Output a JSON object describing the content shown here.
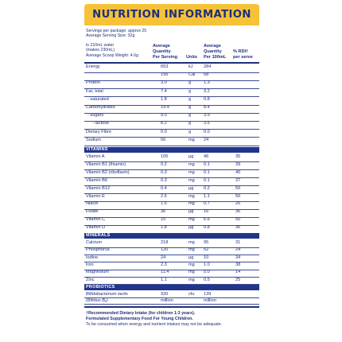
{
  "title": "NUTRITION INFORMATION",
  "meta": [
    "Servings per package: approx 25",
    "Average Serving Size: 32g",
    "in 210mL water",
    "(makes 230mL)",
    "Average Scoop Weight: 4.6g"
  ],
  "headers": {
    "per_serving": [
      "Average",
      "Quantity",
      "Per Serving"
    ],
    "units": "Units",
    "per_100ml": [
      "Average",
      "Quantity",
      "Per 100mL"
    ],
    "rdi": "% RDI†",
    "rdi_sub": "per serve"
  },
  "nutrients": [
    {
      "name": "Energy",
      "v1": "653",
      "u": "kJ",
      "v2": "284",
      "rdi": ""
    },
    {
      "name": "",
      "v1": "156",
      "u": "Cal",
      "v2": "68",
      "rdi": ""
    },
    {
      "name": "Protein",
      "v1": "3.0",
      "u": "g",
      "v2": "1.3",
      "rdi": ""
    },
    {
      "name": "Fat, total",
      "v1": "7.4",
      "u": "g",
      "v2": "3.2",
      "rdi": ""
    },
    {
      "name": "- saturated",
      "v1": "1.8",
      "u": "g",
      "v2": "0.8",
      "rdi": ""
    },
    {
      "name": "Carbohydrates",
      "v1": "19.4",
      "u": "g",
      "v2": "8.4",
      "rdi": ""
    },
    {
      "name": "- sugars",
      "v1": "9.0",
      "u": "g",
      "v2": "3.9",
      "rdi": ""
    },
    {
      "name": "- lactose",
      "v1": "8.2",
      "u": "g",
      "v2": "3.5",
      "rdi": ""
    },
    {
      "name": "Dietary Fibre",
      "v1": "0.0",
      "u": "g",
      "v2": "0.0",
      "rdi": ""
    },
    {
      "name": "Sodium",
      "v1": "56",
      "u": "mg",
      "v2": "24",
      "rdi": ""
    }
  ],
  "vitamins_label": "VITAMINS",
  "vitamins": [
    {
      "name": "Vitamin A",
      "v1": "105",
      "u": "µg",
      "v2": "46",
      "rdi": "35"
    },
    {
      "name": "Vitamin B1 (thiamin)",
      "v1": "0.2",
      "u": "mg",
      "v2": "0.1",
      "rdi": "39"
    },
    {
      "name": "Vitamin B2 (riboflavin)",
      "v1": "0.3",
      "u": "mg",
      "v2": "0.1",
      "rdi": "40"
    },
    {
      "name": "Vitamin B6",
      "v1": "0.3",
      "u": "mg",
      "v2": "0.1",
      "rdi": "37"
    },
    {
      "name": "Vitamin B12",
      "v1": "0.4",
      "u": "µg",
      "v2": "0.2",
      "rdi": "50"
    },
    {
      "name": "Vitamin E",
      "v1": "2.5",
      "u": "mg",
      "v2": "1.1",
      "rdi": "50"
    },
    {
      "name": "Niacin",
      "v1": "1.6",
      "u": "mg",
      "v2": "0.7",
      "rdi": "25"
    },
    {
      "name": "Folate",
      "v1": "36",
      "u": "µg",
      "v2": "16",
      "rdi": "36"
    },
    {
      "name": "Vitamin C",
      "v1": "15",
      "u": "mg",
      "v2": "6.6",
      "rdi": "50"
    },
    {
      "name": "Vitamin D",
      "v1": "1.8",
      "u": "µg",
      "v2": "0.8",
      "rdi": "36"
    }
  ],
  "minerals_label": "MINERALS",
  "minerals": [
    {
      "name": "Calcium",
      "v1": "218",
      "u": "mg",
      "v2": "95",
      "rdi": "31"
    },
    {
      "name": "Phosphorus",
      "v1": "120",
      "u": "mg",
      "v2": "52",
      "rdi": "24"
    },
    {
      "name": "Iodine",
      "v1": "24",
      "u": "µg",
      "v2": "10",
      "rdi": "34"
    },
    {
      "name": "Iron",
      "v1": "2.3",
      "u": "mg",
      "v2": "1.0",
      "rdi": "38"
    },
    {
      "name": "Magnesium",
      "v1": "11.4",
      "u": "mg",
      "v2": "5.0",
      "rdi": "14"
    },
    {
      "name": "Zinc",
      "v1": "1.1",
      "u": "mg",
      "v2": "0.5",
      "rdi": "25"
    }
  ],
  "probiotics_label": "PROBIOTICS",
  "probiotics": [
    {
      "name": "Bifidobacterium lactis",
      "v1": "320",
      "u": "cfu",
      "v2": "139",
      "rdi": ""
    },
    {
      "name": "(Bifidus B₁)",
      "v1": "million",
      "u": "",
      "v2": "million",
      "rdi": ""
    }
  ],
  "footnotes": [
    "†Recommended Dietary Intake (for children 1-3 years).",
    "Formulated Supplementary Food For Young Children.",
    "To be consumed when energy and nutrient intakes may not be adequate."
  ]
}
